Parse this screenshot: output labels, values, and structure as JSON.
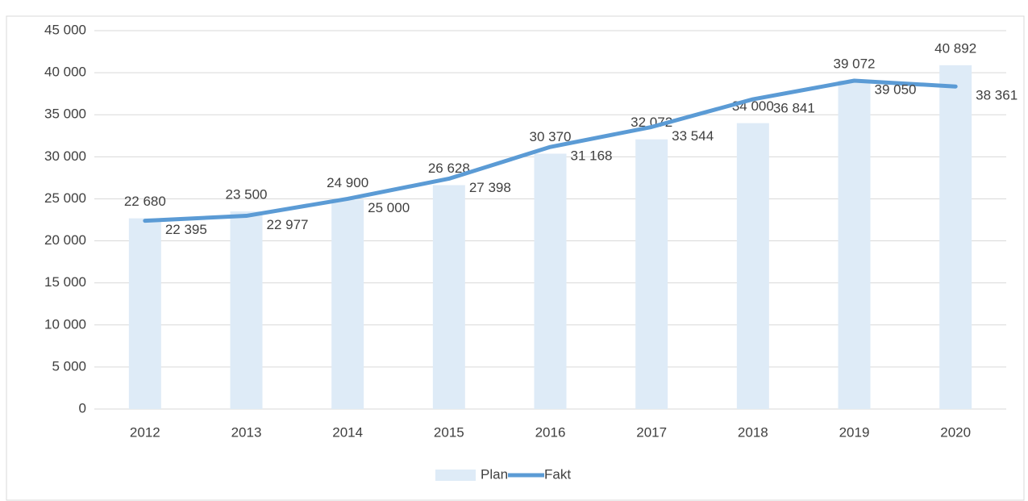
{
  "chart_data": {
    "type": "bar_line",
    "categories": [
      "2012",
      "2013",
      "2014",
      "2015",
      "2016",
      "2017",
      "2018",
      "2019",
      "2020"
    ],
    "series": [
      {
        "name": "Plan",
        "type": "bar",
        "color": "#deebf7",
        "values": [
          22680,
          23500,
          24900,
          26628,
          30370,
          32072,
          34000,
          39072,
          40892
        ],
        "value_labels": [
          "22 680",
          "23 500",
          "24 900",
          "26 628",
          "30 370",
          "32 072",
          "34 000",
          "39 072",
          "40 892"
        ]
      },
      {
        "name": "Fakt",
        "type": "line",
        "color": "#5b9bd5",
        "values": [
          22395,
          22977,
          25000,
          27398,
          31168,
          33544,
          36841,
          39050,
          38361
        ],
        "value_labels": [
          "22 395",
          "22 977",
          "25 000",
          "27 398",
          "31 168",
          "33 544",
          "36 841",
          "39 050",
          "38 361"
        ]
      }
    ],
    "ylim": [
      0,
      45000
    ],
    "yticks": [
      {
        "value": 0,
        "label": "0"
      },
      {
        "value": 5000,
        "label": "5 000"
      },
      {
        "value": 10000,
        "label": "10 000"
      },
      {
        "value": 15000,
        "label": "15 000"
      },
      {
        "value": 20000,
        "label": "20 000"
      },
      {
        "value": 25000,
        "label": "25 000"
      },
      {
        "value": 30000,
        "label": "30 000"
      },
      {
        "value": 35000,
        "label": "35 000"
      },
      {
        "value": 40000,
        "label": "40 000"
      },
      {
        "value": 45000,
        "label": "45 000"
      }
    ],
    "grid": true,
    "legend": "bottom"
  }
}
